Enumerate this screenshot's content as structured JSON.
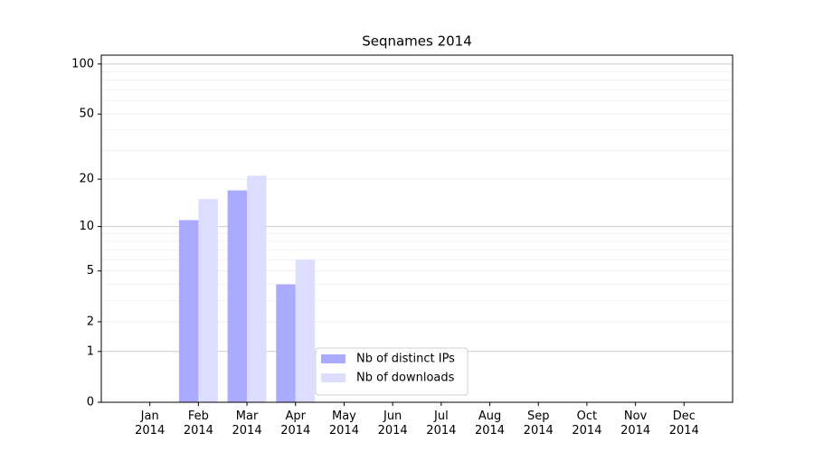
{
  "chart_data": {
    "type": "bar",
    "title": "Seqnames 2014",
    "categories": [
      "Jan\n2014",
      "Feb\n2014",
      "Mar\n2014",
      "Apr\n2014",
      "May\n2014",
      "Jun\n2014",
      "Jul\n2014",
      "Aug\n2014",
      "Sep\n2014",
      "Oct\n2014",
      "Nov\n2014",
      "Dec\n2014"
    ],
    "series": [
      {
        "name": "Nb of distinct IPs",
        "color": "#aaaaff",
        "values": [
          0,
          11,
          17,
          4,
          0,
          0,
          0,
          0,
          0,
          0,
          0,
          0
        ]
      },
      {
        "name": "Nb of downloads",
        "color": "#ddddff",
        "values": [
          0,
          15,
          21,
          6,
          0,
          0,
          0,
          0,
          0,
          0,
          0,
          0
        ]
      }
    ],
    "yscale": "log1p",
    "ylim": [
      0,
      113
    ],
    "yticks": [
      0,
      1,
      2,
      5,
      10,
      20,
      50,
      100
    ],
    "minor_yticks": [
      3,
      4,
      6,
      7,
      8,
      9,
      30,
      40,
      60,
      70,
      80,
      90
    ],
    "grid": true,
    "legend": "lower center"
  }
}
